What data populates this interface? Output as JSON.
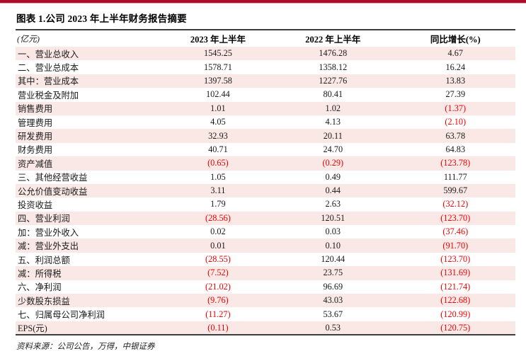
{
  "page": {
    "title": "图表 1.公司 2023 年上半年财务报告摘要",
    "source": "资料来源：公司公告，万得，中银证券"
  },
  "table": {
    "headers": [
      "(亿元)",
      "2023 年上半年",
      "2022 年上半年",
      "同比增长(%)"
    ],
    "rows": [
      [
        "一、营业总收入",
        "1545.25",
        "1476.28",
        "4.67"
      ],
      [
        "二、营业总成本",
        "1578.71",
        "1358.12",
        "16.24"
      ],
      [
        "其中：营业成本",
        "1397.58",
        "1227.76",
        "13.83"
      ],
      [
        "营业税金及附加",
        "102.44",
        "80.41",
        "27.39"
      ],
      [
        "销售费用",
        "1.01",
        "1.02",
        "(1.37)"
      ],
      [
        "管理费用",
        "4.05",
        "4.13",
        "(2.10)"
      ],
      [
        "研发费用",
        "32.93",
        "20.11",
        "63.78"
      ],
      [
        "财务费用",
        "40.71",
        "24.70",
        "64.83"
      ],
      [
        "资产减值",
        "(0.65)",
        "(0.29)",
        "(123.78)"
      ],
      [
        "三、其他经营收益",
        "1.05",
        "0.49",
        "111.77"
      ],
      [
        "公允价值变动收益",
        "3.11",
        "0.44",
        "599.67"
      ],
      [
        "投资收益",
        "1.79",
        "2.63",
        "(32.12)"
      ],
      [
        "四、营业利润",
        "(28.56)",
        "120.51",
        "(123.70)"
      ],
      [
        "加：营业外收入",
        "0.02",
        "0.03",
        "(37.46)"
      ],
      [
        "减：营业外支出",
        "0.01",
        "0.10",
        "(91.70)"
      ],
      [
        "五、利润总额",
        "(28.55)",
        "120.44",
        "(123.70)"
      ],
      [
        "减：所得税",
        "(7.52)",
        "23.75",
        "(131.69)"
      ],
      [
        "六、净利润",
        "(21.02)",
        "96.69",
        "(121.74)"
      ],
      [
        "少数股东损益",
        "(9.76)",
        "43.03",
        "(122.68)"
      ],
      [
        "七、归属母公司净利润",
        "(11.27)",
        "53.67",
        "(120.99)"
      ],
      [
        "EPS(元)",
        "(0.11)",
        "0.53",
        "(120.75)"
      ]
    ]
  },
  "colors": {
    "accent_bar": "#AB0D2D",
    "row_stripe": "#F9E8E5",
    "negative": "#EE0000"
  }
}
